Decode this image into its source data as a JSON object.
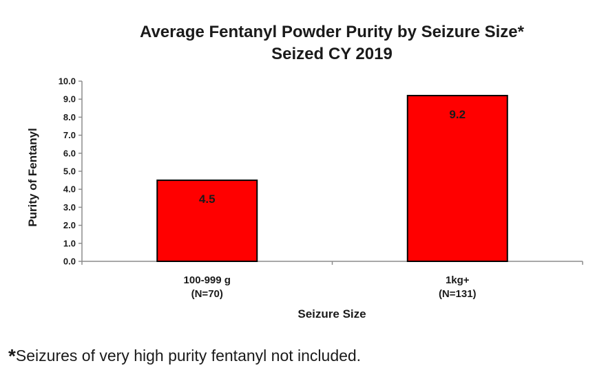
{
  "chart_data": {
    "type": "bar",
    "title_lines": [
      "Average Fentanyl Powder Purity by Seizure Size*",
      "Seized CY 2019"
    ],
    "xlabel": "Seizure Size",
    "ylabel": "Purity of Fentanyl",
    "categories": [
      {
        "name": "100-999 g",
        "sub": "(N=70)"
      },
      {
        "name": "1kg+",
        "sub": "(N=131)"
      }
    ],
    "values": [
      4.5,
      9.2
    ],
    "data_labels": [
      "4.5",
      "9.2"
    ],
    "ylim": [
      0,
      10
    ],
    "yticks": [
      "0.0",
      "1.0",
      "2.0",
      "3.0",
      "4.0",
      "5.0",
      "6.0",
      "7.0",
      "8.0",
      "9.0",
      "10.0"
    ],
    "grid": false,
    "legend": "none",
    "bar_color": "#ff0000",
    "bar_edge_color": "#000000",
    "axis_color": "#8c8c8c"
  },
  "footnote": {
    "marker": "*",
    "text": "Seizures of very high purity fentanyl not included."
  }
}
